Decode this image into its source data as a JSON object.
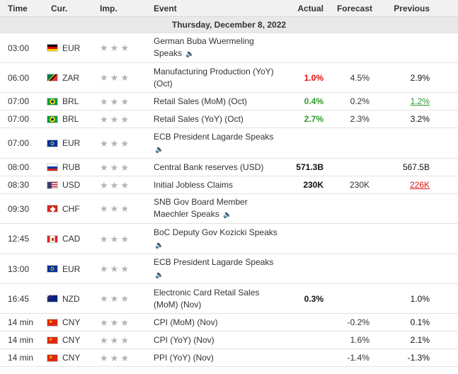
{
  "headers": {
    "time": "Time",
    "currency": "Cur.",
    "importance": "Imp.",
    "event": "Event",
    "actual": "Actual",
    "forecast": "Forecast",
    "previous": "Previous"
  },
  "date_label": "Thursday, December 8, 2022",
  "colors": {
    "negative": "#e0120f",
    "positive": "#2a9c2a",
    "star": "#b3b3b3"
  },
  "rows": [
    {
      "time": "03:00",
      "currency": "EUR",
      "flag": "germany",
      "event": "German Buba Wuermeling Speaks",
      "speech": true,
      "actual": "",
      "actual_style": "black",
      "forecast": "",
      "previous": "",
      "previous_style": "black",
      "h": 42
    },
    {
      "time": "06:00",
      "currency": "ZAR",
      "flag": "south-africa",
      "event": "Manufacturing Production (YoY) (Oct)",
      "speech": false,
      "actual": "1.0%",
      "actual_style": "red",
      "forecast": "4.5%",
      "previous": "2.9%",
      "previous_style": "black",
      "h": 42
    },
    {
      "time": "07:00",
      "currency": "BRL",
      "flag": "brazil",
      "event": "Retail Sales (MoM) (Oct)",
      "speech": false,
      "actual": "0.4%",
      "actual_style": "green",
      "forecast": "0.2%",
      "previous": "1.2%",
      "previous_style": "ul-green",
      "h": 25
    },
    {
      "time": "07:00",
      "currency": "BRL",
      "flag": "brazil",
      "event": "Retail Sales (YoY) (Oct)",
      "speech": false,
      "actual": "2.7%",
      "actual_style": "green",
      "forecast": "2.3%",
      "previous": "3.2%",
      "previous_style": "black",
      "h": 25
    },
    {
      "time": "07:00",
      "currency": "EUR",
      "flag": "eu",
      "event": "ECB President Lagarde Speaks",
      "speech": true,
      "actual": "",
      "actual_style": "black",
      "forecast": "",
      "previous": "",
      "previous_style": "black",
      "h": 43
    },
    {
      "time": "08:00",
      "currency": "RUB",
      "flag": "russia",
      "event": "Central Bank reserves (USD)",
      "speech": false,
      "actual": "571.3B",
      "actual_style": "black",
      "forecast": "",
      "previous": "567.5B",
      "previous_style": "black",
      "h": 25
    },
    {
      "time": "08:30",
      "currency": "USD",
      "flag": "usa",
      "event": "Initial Jobless Claims",
      "speech": false,
      "actual": "230K",
      "actual_style": "black",
      "forecast": "230K",
      "previous": "226K",
      "previous_style": "ul-red",
      "h": 25
    },
    {
      "time": "09:30",
      "currency": "CHF",
      "flag": "switzerland",
      "event": "SNB Gov Board Member Maechler Speaks",
      "speech": true,
      "actual": "",
      "actual_style": "black",
      "forecast": "",
      "previous": "",
      "previous_style": "black",
      "h": 42
    },
    {
      "time": "12:45",
      "currency": "CAD",
      "flag": "canada",
      "event": "BoC Deputy Gov Kozicki Speaks",
      "speech": true,
      "actual": "",
      "actual_style": "black",
      "forecast": "",
      "previous": "",
      "previous_style": "black",
      "h": 43
    },
    {
      "time": "13:00",
      "currency": "EUR",
      "flag": "eu",
      "event": "ECB President Lagarde Speaks",
      "speech": true,
      "actual": "",
      "actual_style": "black",
      "forecast": "",
      "previous": "",
      "previous_style": "black",
      "h": 42
    },
    {
      "time": "16:45",
      "currency": "NZD",
      "flag": "new-zealand",
      "event": "Electronic Card Retail Sales (MoM) (Nov)",
      "speech": false,
      "actual": "0.3%",
      "actual_style": "black",
      "forecast": "",
      "previous": "1.0%",
      "previous_style": "black",
      "h": 42
    },
    {
      "time": "14 min",
      "currency": "CNY",
      "flag": "china",
      "event": "CPI (MoM) (Nov)",
      "speech": false,
      "actual": "",
      "actual_style": "black",
      "forecast": "-0.2%",
      "previous": "0.1%",
      "previous_style": "black",
      "h": 25
    },
    {
      "time": "14 min",
      "currency": "CNY",
      "flag": "china",
      "event": "CPI (YoY) (Nov)",
      "speech": false,
      "actual": "",
      "actual_style": "black",
      "forecast": "1.6%",
      "previous": "2.1%",
      "previous_style": "black",
      "h": 25
    },
    {
      "time": "14 min",
      "currency": "CNY",
      "flag": "china",
      "event": "PPI (YoY) (Nov)",
      "speech": false,
      "actual": "",
      "actual_style": "black",
      "forecast": "-1.4%",
      "previous": "-1.3%",
      "previous_style": "black",
      "h": 25
    }
  ]
}
